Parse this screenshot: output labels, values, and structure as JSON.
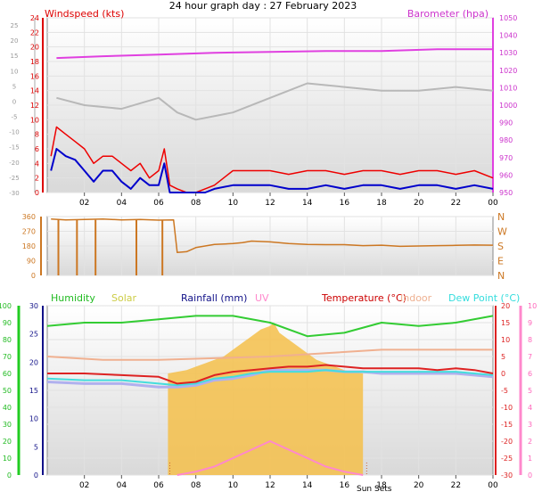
{
  "title": "24 hour graph day : 27 February 2023",
  "colors": {
    "wind": "#ee0000",
    "wind_avg": "#0000cc",
    "baro": "#e040e0",
    "gust_grey": "#b8b8b8",
    "dir": "#cc7722",
    "hum": "#33cc33",
    "solar": "#f5c04a",
    "uv": "#ff88cc",
    "temp": "#dd2222",
    "indoor": "#f0b090",
    "dew": "#44dddd",
    "app": "#b0b0ee",
    "rain": "#111188"
  },
  "chart_data": [
    {
      "type": "line",
      "title": "",
      "x_ticks": [
        "02",
        "04",
        "06",
        "08",
        "10",
        "12",
        "14",
        "16",
        "18",
        "20",
        "22",
        "00"
      ],
      "xlim": [
        0,
        24
      ],
      "left_axis": {
        "label": "Windspeed (kts)",
        "ylim": [
          0,
          24
        ],
        "ticks": [
          0,
          2,
          4,
          6,
          8,
          10,
          12,
          14,
          16,
          18,
          20,
          22,
          24
        ],
        "outer_ticks": [
          "-30",
          "-25",
          "-20",
          "-15",
          "-10",
          "-5",
          "0",
          "5",
          "10",
          "15",
          "20",
          "25"
        ]
      },
      "right_axis": {
        "label": "Barometer (hpa)",
        "ylim": [
          950,
          1050
        ],
        "ticks": [
          950,
          960,
          970,
          980,
          990,
          1000,
          1010,
          1020,
          1030,
          1040,
          1050
        ]
      },
      "series": [
        {
          "name": "",
          "axis": "right",
          "x": [
            0.5,
            3,
            6,
            9,
            12,
            15,
            18,
            21,
            24
          ],
          "values": [
            1027,
            1028,
            1029,
            1030,
            1030.5,
            1031,
            1031,
            1032,
            1032
          ]
        },
        {
          "name": "",
          "axis": "left",
          "x": [
            0.5,
            2,
            4,
            6,
            7,
            8,
            10,
            12,
            13,
            14,
            16,
            18,
            20,
            22,
            24
          ],
          "values": [
            5,
            4,
            3.5,
            5,
            3,
            2,
            3,
            5,
            6,
            7,
            6.5,
            6,
            6,
            6.5,
            6
          ]
        },
        {
          "name": "",
          "axis": "left",
          "x": [
            0.2,
            0.5,
            1,
            1.5,
            2,
            2.5,
            3,
            3.5,
            4,
            4.5,
            5,
            5.5,
            6,
            6.3,
            6.6,
            7,
            7.5,
            8,
            8.5,
            9,
            10,
            11,
            12,
            13,
            14,
            15,
            16,
            17,
            18,
            19,
            20,
            21,
            22,
            23,
            24
          ],
          "values": [
            5,
            9,
            8,
            7,
            6,
            4,
            5,
            5,
            4,
            3,
            4,
            2,
            3,
            6,
            1,
            0.5,
            0,
            0,
            0.5,
            1,
            3,
            3,
            3,
            2.5,
            3,
            3,
            2.5,
            3,
            3,
            2.5,
            3,
            3,
            2.5,
            3,
            2
          ]
        },
        {
          "name": "",
          "axis": "left",
          "x": [
            0.2,
            0.5,
            1,
            1.5,
            2,
            2.5,
            3,
            3.5,
            4,
            4.5,
            5,
            5.5,
            6,
            6.3,
            6.6,
            7,
            7.5,
            8,
            8.5,
            9,
            10,
            11,
            12,
            13,
            14,
            15,
            16,
            17,
            18,
            19,
            20,
            21,
            22,
            23,
            24
          ],
          "values": [
            3,
            6,
            5,
            4.5,
            3,
            1.5,
            3,
            3,
            1.5,
            0.5,
            2,
            1,
            1,
            4,
            0,
            0,
            0,
            0,
            0,
            0.5,
            1,
            1,
            1,
            0.5,
            0.5,
            1,
            0.5,
            1,
            1,
            0.5,
            1,
            1,
            0.5,
            1,
            0.5
          ]
        }
      ]
    },
    {
      "type": "scatter",
      "title": "",
      "left_axis": {
        "ylim": [
          0,
          360
        ],
        "ticks": [
          0,
          90,
          180,
          270,
          360
        ]
      },
      "right_axis": {
        "ticks": [
          "N",
          "E",
          "S",
          "W",
          "N"
        ]
      },
      "series": [
        {
          "name": "",
          "x": [
            0.2,
            1,
            2,
            3,
            4,
            5,
            6,
            6.8,
            7,
            7.5,
            8,
            9,
            10,
            10.5,
            11,
            12,
            13,
            14,
            15,
            16,
            17,
            18,
            19,
            20,
            21,
            22,
            23,
            24
          ],
          "values": [
            345,
            340,
            342,
            345,
            340,
            342,
            338,
            340,
            140,
            145,
            170,
            190,
            195,
            200,
            210,
            205,
            195,
            190,
            188,
            188,
            182,
            185,
            178,
            180,
            182,
            184,
            186,
            185
          ]
        }
      ]
    },
    {
      "type": "line",
      "title": "",
      "legend": [
        "Humidity",
        "Solar",
        "Rainfall (mm)",
        "UV",
        "Temperature (°C)",
        "Indoor",
        "Dew Point (°C)"
      ],
      "left_axes": [
        {
          "ticks": [
            0,
            10,
            20,
            30,
            40,
            50,
            60,
            70,
            80,
            90,
            100
          ]
        },
        {
          "ticks": [
            0,
            5,
            10,
            15,
            20,
            25,
            30
          ]
        }
      ],
      "right_axes": [
        {
          "ticks": [
            -30,
            -25,
            -20,
            -15,
            -10,
            -5,
            0,
            5,
            10,
            15,
            20
          ]
        },
        {
          "ticks": [
            0,
            1,
            2,
            3,
            4,
            5,
            6,
            7,
            8,
            9,
            10
          ]
        }
      ],
      "temp_ylim": [
        -30,
        20
      ],
      "annotations": [
        "Sun Sets"
      ],
      "series": [
        {
          "name": "Humidity",
          "x": [
            0,
            2,
            4,
            6,
            8,
            10,
            12,
            14,
            16,
            18,
            20,
            22,
            24
          ],
          "values": [
            14,
            15,
            15,
            16,
            17,
            17,
            15,
            11,
            12,
            15,
            14,
            15,
            17
          ]
        },
        {
          "name": "Indoor",
          "x": [
            0,
            3,
            6,
            9,
            12,
            15,
            18,
            21,
            24
          ],
          "values": [
            5,
            4,
            4,
            4.5,
            5,
            6,
            7,
            7,
            7
          ]
        },
        {
          "name": "Temperature (°C)",
          "x": [
            0,
            2,
            4,
            6,
            7,
            8,
            9,
            10,
            11,
            12,
            13,
            14,
            15,
            16,
            17,
            18,
            19,
            20,
            21,
            22,
            23,
            24
          ],
          "values": [
            0,
            0,
            -0.5,
            -1,
            -3,
            -2.5,
            -0.5,
            0.5,
            1,
            1.5,
            2,
            2,
            2.5,
            2,
            1.5,
            1.5,
            1.5,
            1.5,
            1,
            1.5,
            1,
            0
          ]
        },
        {
          "name": "Dew Point (°C)",
          "x": [
            0,
            2,
            4,
            6,
            7,
            8,
            9,
            10,
            11,
            12,
            13,
            14,
            15,
            16,
            17,
            18,
            19,
            20,
            21,
            22,
            23,
            24
          ],
          "values": [
            -1.5,
            -2,
            -2,
            -3,
            -3.5,
            -3,
            -1.5,
            -1,
            0,
            0.5,
            0.5,
            0.5,
            1,
            0.5,
            0.5,
            0.5,
            0.5,
            0.5,
            0.5,
            0.5,
            0,
            -0.5
          ]
        },
        {
          "name": "",
          "x": [
            0,
            2,
            4,
            6,
            7,
            8,
            9,
            10,
            11,
            12,
            13,
            14,
            15,
            16,
            17,
            18,
            19,
            20,
            21,
            22,
            23,
            24
          ],
          "values": [
            -2.5,
            -3,
            -3,
            -4,
            -4,
            -3.5,
            -2,
            -1.5,
            -0.5,
            1,
            1,
            1,
            1,
            0.5,
            0.5,
            0,
            0,
            0,
            0,
            0,
            -0.5,
            -1
          ]
        },
        {
          "name": "Solar",
          "x": [
            6.5,
            7,
            7.5,
            8,
            8.5,
            9,
            9.5,
            10,
            10.5,
            11,
            11.5,
            12,
            12.2,
            12.5,
            13,
            13.5,
            14,
            14.5,
            15,
            15.5,
            16,
            16.5,
            17
          ],
          "values": [
            0,
            0.5,
            1,
            2,
            3,
            4,
            5,
            7,
            9,
            11,
            13,
            14,
            15,
            12,
            10,
            8,
            6,
            4,
            3,
            2,
            1,
            0.3,
            0
          ]
        },
        {
          "name": "UV",
          "x": [
            7,
            8,
            9,
            10,
            11,
            12,
            13,
            14,
            15,
            16,
            17
          ],
          "values": [
            0,
            0.2,
            0.5,
            1,
            1.5,
            2,
            1.5,
            1,
            0.5,
            0.2,
            0
          ]
        }
      ]
    }
  ]
}
